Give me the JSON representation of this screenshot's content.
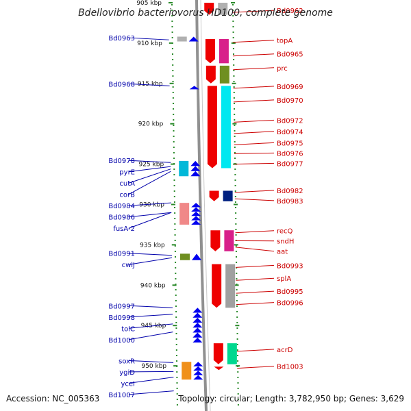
{
  "title": "Bdellovibrio bacteriovorus HD100, complete genome",
  "footer": {
    "accession": "Accession: NC_005363",
    "topology": "Topology: circular; Length: 3,782,950 bp; Genes: 3,629"
  },
  "colors": {
    "forward": "#0000ee",
    "reverse": "#ee0000",
    "left_label": "#0000aa",
    "right_label": "#cc0000",
    "backbone": "#909090",
    "tick": "#2a8a2a"
  },
  "ticks": [
    {
      "kbp": 905,
      "label": "905 kbp"
    },
    {
      "kbp": 910,
      "label": "910 kbp"
    },
    {
      "kbp": 915,
      "label": "915 kbp"
    },
    {
      "kbp": 920,
      "label": "920 kbp"
    },
    {
      "kbp": 925,
      "label": "925 kbp"
    },
    {
      "kbp": 930,
      "label": "930 kbp"
    },
    {
      "kbp": 935,
      "label": "935 kbp"
    },
    {
      "kbp": 940,
      "label": "940 kbp"
    },
    {
      "kbp": 945,
      "label": "945 kbp"
    },
    {
      "kbp": 950,
      "label": "950 kbp"
    }
  ],
  "left_genes": [
    {
      "label": "Bd0963",
      "kbp": 909.6
    },
    {
      "label": "Bd0968",
      "kbp": 915.3
    },
    {
      "label": "Bd0978",
      "kbp": 924.8
    },
    {
      "label": "pyrE",
      "kbp": 925.3
    },
    {
      "label": "cutA",
      "kbp": 925.6
    },
    {
      "label": "corB",
      "kbp": 925.9
    },
    {
      "label": "Bd0984",
      "kbp": 929.8
    },
    {
      "label": "Bd0986",
      "kbp": 931.0
    },
    {
      "label": "fusA-2",
      "kbp": 931.0
    },
    {
      "label": "Bd0991",
      "kbp": 936.3
    },
    {
      "label": "cwlJ",
      "kbp": 936.6
    },
    {
      "label": "Bd0997",
      "kbp": 942.8
    },
    {
      "label": "Bd0998",
      "kbp": 943.6
    },
    {
      "label": "tolC",
      "kbp": 944.8
    },
    {
      "label": "Bd1000",
      "kbp": 945.8
    },
    {
      "label": "soxR",
      "kbp": 949.6
    },
    {
      "label": "ygiD",
      "kbp": 950.7
    },
    {
      "label": "yceI",
      "kbp": 951.4
    },
    {
      "label": "Bd1007",
      "kbp": 953.1
    }
  ],
  "right_genes": [
    {
      "label": "Bd0962",
      "kbp": 906.2
    },
    {
      "label": "topA",
      "kbp": 909.9
    },
    {
      "label": "Bd0965",
      "kbp": 911.6
    },
    {
      "label": "prc",
      "kbp": 913.3
    },
    {
      "label": "Bd0969",
      "kbp": 915.6
    },
    {
      "label": "Bd0970",
      "kbp": 917.3
    },
    {
      "label": "Bd0972",
      "kbp": 919.8
    },
    {
      "label": "Bd0974",
      "kbp": 921.2
    },
    {
      "label": "Bd0975",
      "kbp": 922.6
    },
    {
      "label": "Bd0976",
      "kbp": 923.7
    },
    {
      "label": "Bd0977",
      "kbp": 925.0
    },
    {
      "label": "Bd0982",
      "kbp": 928.5
    },
    {
      "label": "Bd0983",
      "kbp": 929.3
    },
    {
      "label": "recQ",
      "kbp": 933.5
    },
    {
      "label": "sndH",
      "kbp": 934.5
    },
    {
      "label": "aat",
      "kbp": 935.3
    },
    {
      "label": "Bd0993",
      "kbp": 937.8
    },
    {
      "label": "splA",
      "kbp": 939.4
    },
    {
      "label": "Bd0995",
      "kbp": 941.0
    },
    {
      "label": "Bd0996",
      "kbp": 942.4
    },
    {
      "label": "acrD",
      "kbp": 948.2
    },
    {
      "label": "Bd1003",
      "kbp": 950.3
    }
  ],
  "features": [
    {
      "strand": "+",
      "start": 909.2,
      "end": 909.8,
      "color": "#0000ee",
      "cog": "#b0b0b0"
    },
    {
      "strand": "+",
      "start": 915.3,
      "end": 915.5,
      "color": "#0000ee",
      "cog": ""
    },
    {
      "strand": "+",
      "start": 924.6,
      "end": 926.5,
      "color": "#0000ee",
      "cog": "#00b8d8"
    },
    {
      "strand": "+",
      "start": 929.8,
      "end": 932.5,
      "color": "#0000ee",
      "cog": "#f08888"
    },
    {
      "strand": "+",
      "start": 936.1,
      "end": 936.9,
      "color": "#0000ee",
      "cog": "#6f8f20"
    },
    {
      "strand": "+",
      "start": 942.8,
      "end": 947.1,
      "color": "#0000ee",
      "cog": ""
    },
    {
      "strand": "+",
      "start": 949.5,
      "end": 951.7,
      "color": "#0000ee",
      "cog": "#f0901a"
    },
    {
      "strand": "-",
      "start": 905.0,
      "end": 906.5,
      "color": "#ee0000",
      "cog": "#b0b0b0"
    },
    {
      "strand": "-",
      "start": 909.5,
      "end": 912.5,
      "color": "#ee0000",
      "cog": "#d8208a"
    },
    {
      "strand": "-",
      "start": 912.8,
      "end": 915.0,
      "color": "#ee0000",
      "cog": "#6f8f20"
    },
    {
      "strand": "-",
      "start": 915.3,
      "end": 925.5,
      "color": "#ee0000",
      "cog": "#00e8f0"
    },
    {
      "strand": "-",
      "start": 928.3,
      "end": 929.6,
      "color": "#ee0000",
      "cog": "#002080"
    },
    {
      "strand": "-",
      "start": 933.2,
      "end": 935.8,
      "color": "#ee0000",
      "cog": "#d8208a"
    },
    {
      "strand": "-",
      "start": 937.4,
      "end": 942.8,
      "color": "#ee0000",
      "cog": "#a0a0a0"
    },
    {
      "strand": "-",
      "start": 947.2,
      "end": 949.8,
      "color": "#ee0000",
      "cog": "#00d890"
    },
    {
      "strand": "-",
      "start": 950.1,
      "end": 950.4,
      "color": "#ee0000",
      "cog": ""
    }
  ]
}
